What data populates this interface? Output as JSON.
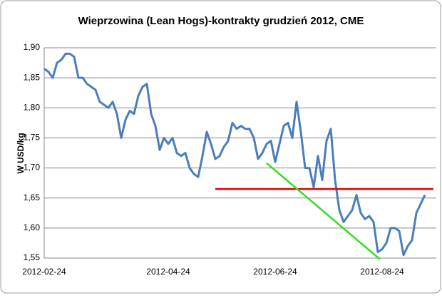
{
  "chart_data": {
    "type": "line",
    "title": "Wieprzowina (Lean Hogs)-kontrakty grudzień 2012, CME",
    "y_label": "W USD/kg",
    "categories": [
      "2012-02-24",
      null,
      null,
      null,
      null,
      null,
      null,
      null,
      null,
      null,
      null,
      null,
      null,
      null,
      null,
      null,
      null,
      null,
      null,
      null,
      null,
      null,
      null,
      null,
      null,
      null,
      null,
      null,
      null,
      "2012-04-24",
      null,
      null,
      null,
      null,
      null,
      null,
      null,
      null,
      null,
      null,
      null,
      null,
      null,
      null,
      null,
      null,
      null,
      null,
      null,
      null,
      null,
      null,
      null,
      null,
      "2012-06-24",
      null,
      null,
      null,
      null,
      null,
      null,
      null,
      null,
      null,
      null,
      null,
      null,
      null,
      null,
      null,
      null,
      null,
      null,
      null,
      null,
      null,
      null,
      null,
      null,
      "2012-08-24",
      null,
      null,
      null,
      null,
      null,
      null,
      null,
      null,
      null,
      null
    ],
    "values": [
      1.865,
      1.86,
      1.85,
      1.875,
      1.88,
      1.89,
      1.89,
      1.885,
      1.85,
      1.85,
      1.84,
      1.835,
      1.83,
      1.81,
      1.805,
      1.8,
      1.81,
      1.79,
      1.75,
      1.78,
      1.795,
      1.79,
      1.82,
      1.835,
      1.84,
      1.79,
      1.77,
      1.73,
      1.75,
      1.74,
      1.75,
      1.725,
      1.72,
      1.725,
      1.7,
      1.69,
      1.685,
      1.72,
      1.76,
      1.74,
      1.715,
      1.72,
      1.735,
      1.745,
      1.775,
      1.765,
      1.77,
      1.765,
      1.765,
      1.75,
      1.715,
      1.725,
      1.74,
      1.745,
      1.71,
      1.74,
      1.77,
      1.775,
      1.75,
      1.81,
      1.76,
      1.7,
      1.7,
      1.668,
      1.72,
      1.68,
      1.745,
      1.765,
      1.68,
      1.63,
      1.61,
      1.62,
      1.63,
      1.655,
      1.625,
      1.615,
      1.62,
      1.61,
      1.56,
      1.565,
      1.575,
      1.6,
      1.6,
      1.595,
      1.555,
      1.57,
      1.58,
      1.625,
      1.64,
      1.655
    ],
    "color": "#4a7ebb",
    "ylim": [
      1.55,
      1.9
    ],
    "yticks": [
      {
        "value": 1.55,
        "label": "1,55"
      },
      {
        "value": 1.6,
        "label": "1,60"
      },
      {
        "value": 1.65,
        "label": "1,65"
      },
      {
        "value": 1.7,
        "label": "1,70"
      },
      {
        "value": 1.75,
        "label": "1,75"
      },
      {
        "value": 1.8,
        "label": "1,80"
      },
      {
        "value": 1.85,
        "label": "1,85"
      },
      {
        "value": 1.9,
        "label": "1,90"
      }
    ],
    "grid": true,
    "annotation_lines": [
      {
        "color": "#e00000",
        "x": [
          40,
          91
        ],
        "y": [
          1.665,
          1.665
        ]
      },
      {
        "color": "#33dd22",
        "x": [
          52,
          78.5
        ],
        "y": [
          1.708,
          1.548
        ]
      }
    ]
  }
}
